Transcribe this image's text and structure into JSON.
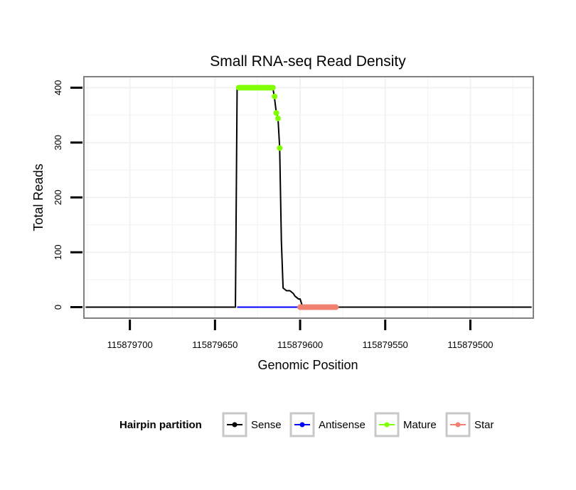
{
  "chart_data": {
    "type": "line",
    "title": "Small RNA-seq Read Density",
    "xlabel": "Genomic Position",
    "ylabel": "Total Reads",
    "x_reversed": true,
    "xlim": [
      115879727,
      115879463
    ],
    "ylim": [
      -20,
      420
    ],
    "x_ticks": [
      115879700,
      115879650,
      115879600,
      115879550,
      115879500
    ],
    "x_tick_labels": [
      "115879700",
      "115879650",
      "115879600",
      "115879550",
      "115879500"
    ],
    "y_ticks": [
      0,
      100,
      200,
      300,
      400
    ],
    "y_tick_labels": [
      "0",
      "100",
      "200",
      "300",
      "400"
    ],
    "grid": true,
    "legend": {
      "title": "Hairpin partition",
      "position": "bottom",
      "entries": [
        {
          "label": "Sense",
          "color": "#000000"
        },
        {
          "label": "Antisense",
          "color": "#0000ff"
        },
        {
          "label": "Mature",
          "color": "#7fff00"
        },
        {
          "label": "Star",
          "color": "#f08070"
        }
      ]
    },
    "series": [
      {
        "name": "Sense",
        "color": "#000000",
        "marker": false,
        "x": [
          115879726,
          115879638,
          115879637,
          115879616,
          115879615,
          115879614,
          115879613,
          115879612,
          115879611,
          115879610,
          115879608,
          115879606,
          115879604,
          115879603,
          115879601,
          115879600,
          115879599,
          115879598,
          115879464
        ],
        "y": [
          0,
          0,
          400,
          400,
          380,
          355,
          345,
          290,
          120,
          35,
          30,
          30,
          25,
          20,
          15,
          15,
          5,
          0,
          0
        ]
      },
      {
        "name": "Antisense",
        "color": "#0000ff",
        "marker": false,
        "x": [
          115879637,
          115879598
        ],
        "y": [
          0,
          0
        ]
      },
      {
        "name": "Mature",
        "color": "#7fff00",
        "marker": true,
        "x": [
          115879636,
          115879635,
          115879634,
          115879633,
          115879632,
          115879631,
          115879630,
          115879629,
          115879628,
          115879627,
          115879626,
          115879625,
          115879624,
          115879623,
          115879622,
          115879621,
          115879620,
          115879619,
          115879618,
          115879617,
          115879616,
          115879615,
          115879614,
          115879613,
          115879612
        ],
        "y": [
          400,
          400,
          400,
          400,
          400,
          400,
          400,
          400,
          400,
          400,
          400,
          400,
          400,
          400,
          400,
          400,
          400,
          400,
          400,
          400,
          400,
          384,
          354,
          344,
          290
        ]
      },
      {
        "name": "Star",
        "color": "#f08070",
        "marker": true,
        "x": [
          115879600,
          115879599,
          115879598,
          115879597,
          115879596,
          115879595,
          115879594,
          115879593,
          115879592,
          115879591,
          115879590,
          115879589,
          115879588,
          115879587,
          115879586,
          115879585,
          115879584,
          115879583,
          115879582,
          115879581,
          115879580,
          115879579
        ],
        "y": [
          0,
          0,
          0,
          0,
          0,
          0,
          0,
          0,
          0,
          0,
          0,
          0,
          0,
          0,
          0,
          0,
          0,
          0,
          0,
          0,
          0,
          0
        ]
      }
    ]
  }
}
